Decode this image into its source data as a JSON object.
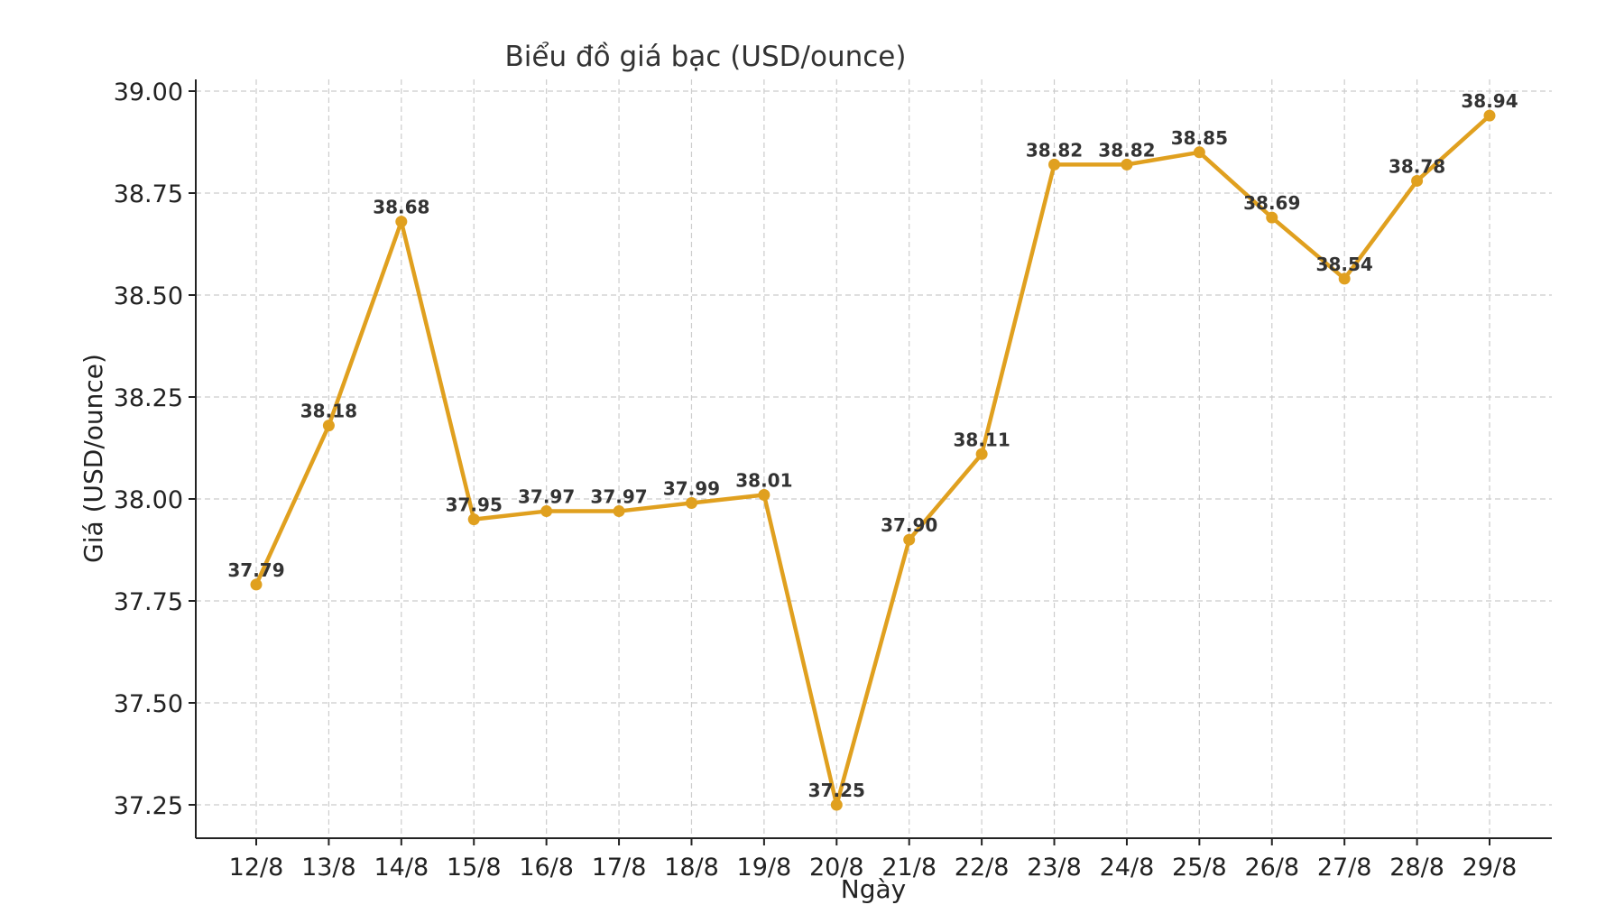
{
  "chart_data": {
    "type": "line",
    "title": "Biểu đồ giá bạc (USD/ounce)",
    "xlabel": "Ngày",
    "ylabel": "Giá (USD/ounce)",
    "categories": [
      "12/8",
      "13/8",
      "14/8",
      "15/8",
      "16/8",
      "17/8",
      "18/8",
      "19/8",
      "20/8",
      "21/8",
      "22/8",
      "23/8",
      "24/8",
      "25/8",
      "26/8",
      "27/8",
      "28/8",
      "29/8"
    ],
    "series": [
      {
        "values": [
          37.79,
          38.18,
          38.68,
          37.95,
          37.97,
          37.97,
          37.99,
          38.01,
          37.25,
          37.9,
          38.11,
          38.82,
          38.82,
          38.85,
          38.69,
          38.54,
          38.78,
          38.94
        ],
        "color": "#E0A01F"
      }
    ],
    "data_labels": [
      "37.79",
      "38.18",
      "38.68",
      "37.95",
      "37.97",
      "37.97",
      "37.99",
      "38.01",
      "37.25",
      "37.90",
      "38.11",
      "38.82",
      "38.82",
      "38.85",
      "38.69",
      "38.54",
      "38.78",
      "38.94"
    ],
    "yticks": [
      37.25,
      37.5,
      37.75,
      38.0,
      38.25,
      38.5,
      38.75,
      39.0
    ],
    "ytick_labels": [
      "37.25",
      "37.50",
      "37.75",
      "38.00",
      "38.25",
      "38.50",
      "38.75",
      "39.00"
    ],
    "ylim": [
      37.165,
      39.035
    ],
    "grid": true
  }
}
